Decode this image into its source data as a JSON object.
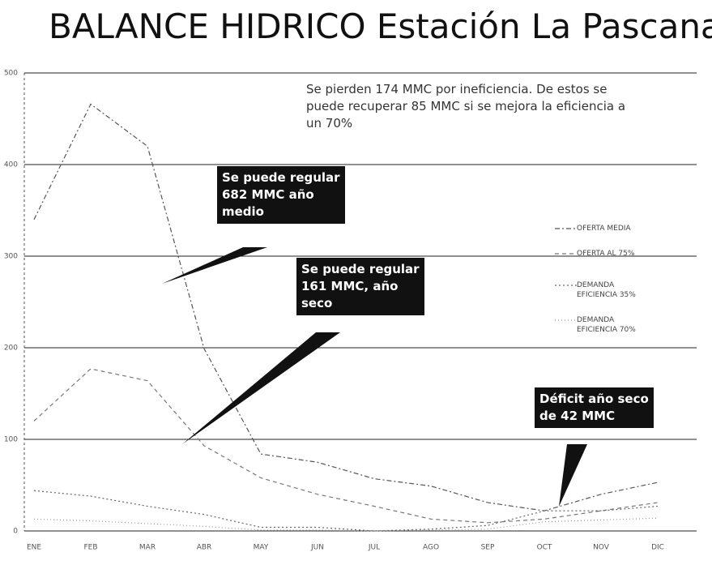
{
  "chart_data": {
    "type": "line",
    "title": "BALANCE HIDRICO Estación La Pascana",
    "categories": [
      "ENE",
      "FEB",
      "MAR",
      "ABR",
      "MAY",
      "JUN",
      "JUL",
      "AGO",
      "SEP",
      "OCT",
      "NOV",
      "DIC"
    ],
    "series": [
      {
        "name": "OFERTA MEDIA",
        "color": "#555555",
        "dash": "6 3 2 3",
        "values": [
          340,
          466,
          420,
          199,
          84,
          75,
          57,
          49,
          31,
          22,
          40,
          53
        ]
      },
      {
        "name": "OFERTA AL 75%",
        "color": "#777777",
        "dash": "5 4",
        "values": [
          120,
          177,
          164,
          93,
          58,
          40,
          27,
          13,
          9,
          13,
          22,
          31
        ]
      },
      {
        "name": "DEMANDA EFICIENCIA 35%",
        "color": "#666666",
        "dash": "2 3",
        "values": [
          44,
          38,
          27,
          18,
          4,
          4,
          0,
          2,
          6,
          22,
          22,
          27
        ]
      },
      {
        "name": "DEMANDA EFICIENCIA 70%",
        "color": "#999999",
        "dash": "1 3",
        "values": [
          13,
          11,
          8,
          5,
          1,
          1,
          0,
          1,
          2,
          10,
          12,
          14
        ]
      }
    ],
    "ylim": [
      0,
      500
    ],
    "yticks": [
      0,
      100,
      200,
      300,
      400,
      500
    ],
    "grid": true,
    "legend": "right",
    "note": "Se pierden 174 MMC por ineficiencia. De estos se puede recuperar 85 MMC si se mejora la eficiencia a un 70%",
    "annotations": [
      [
        "Se puede regular",
        "682 MMC año",
        "medio"
      ],
      [
        "Se puede regular",
        "161  MMC, año",
        "seco"
      ],
      [
        "Déficit año seco",
        "de 42 MMC"
      ]
    ]
  }
}
